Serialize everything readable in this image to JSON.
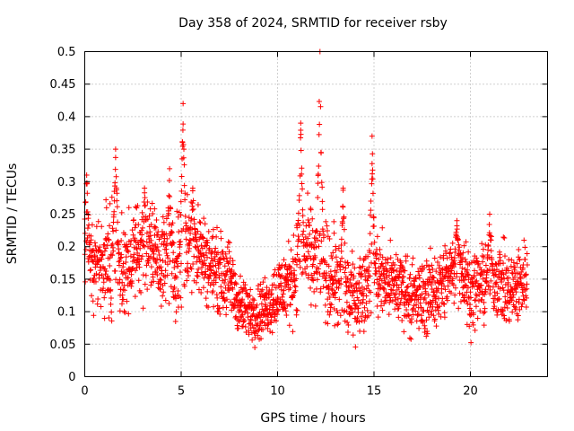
{
  "chart_data": {
    "type": "scatter",
    "title": "Day 358 of 2024, SRMTID for receiver rsby",
    "xlabel": "GPS time / hours",
    "ylabel": "SRMTID / TECUs",
    "xlim": [
      0,
      24
    ],
    "ylim": [
      0,
      0.5
    ],
    "x_ticks": [
      0,
      5,
      10,
      15,
      20
    ],
    "x_tick_labels": [
      "0",
      "5",
      "10",
      "15",
      "20"
    ],
    "y_ticks": [
      0,
      0.05,
      0.1,
      0.15,
      0.2,
      0.25,
      0.3,
      0.35,
      0.4,
      0.45,
      0.5
    ],
    "y_tick_labels": [
      "0",
      "0.05",
      "0.1",
      "0.15",
      "0.2",
      "0.25",
      "0.3",
      "0.35",
      "0.4",
      "0.45",
      "0.5"
    ],
    "grid": true,
    "marker": "+",
    "color": "#ff0000",
    "sample_interval_hours": 0.01,
    "series": [
      {
        "name": "SRMTID",
        "x_start": 0.0,
        "x_end": 22.95,
        "envelope_hours": [
          0,
          0.5,
          1,
          1.5,
          2,
          2.5,
          3,
          3.5,
          4,
          4.5,
          5,
          5.5,
          6,
          6.5,
          7,
          7.5,
          8,
          8.5,
          9,
          9.5,
          10,
          10.5,
          11,
          11.5,
          12,
          12.5,
          13,
          13.5,
          14,
          14.5,
          15,
          15.5,
          16,
          16.5,
          17,
          17.5,
          18,
          18.5,
          19,
          19.5,
          20,
          20.5,
          21,
          21.5,
          22,
          22.5,
          23
        ],
        "envelope_mean": [
          0.2,
          0.17,
          0.17,
          0.19,
          0.15,
          0.19,
          0.2,
          0.2,
          0.18,
          0.17,
          0.18,
          0.2,
          0.19,
          0.17,
          0.16,
          0.15,
          0.11,
          0.1,
          0.1,
          0.11,
          0.13,
          0.14,
          0.17,
          0.19,
          0.18,
          0.16,
          0.15,
          0.13,
          0.12,
          0.14,
          0.16,
          0.15,
          0.14,
          0.14,
          0.12,
          0.12,
          0.13,
          0.14,
          0.16,
          0.17,
          0.13,
          0.14,
          0.15,
          0.15,
          0.13,
          0.14,
          0.16
        ],
        "envelope_spread": [
          0.05,
          0.05,
          0.05,
          0.06,
          0.05,
          0.05,
          0.05,
          0.05,
          0.05,
          0.05,
          0.06,
          0.05,
          0.05,
          0.04,
          0.04,
          0.04,
          0.03,
          0.03,
          0.03,
          0.03,
          0.04,
          0.04,
          0.05,
          0.05,
          0.05,
          0.05,
          0.05,
          0.05,
          0.04,
          0.04,
          0.05,
          0.04,
          0.04,
          0.04,
          0.04,
          0.04,
          0.04,
          0.04,
          0.04,
          0.04,
          0.04,
          0.04,
          0.04,
          0.04,
          0.04,
          0.04,
          0.04
        ],
        "peaks": [
          {
            "x": 0.1,
            "y": 0.31
          },
          {
            "x": 1.6,
            "y": 0.35
          },
          {
            "x": 3.1,
            "y": 0.29
          },
          {
            "x": 4.4,
            "y": 0.32
          },
          {
            "x": 5.1,
            "y": 0.42
          },
          {
            "x": 5.6,
            "y": 0.29
          },
          {
            "x": 11.2,
            "y": 0.39
          },
          {
            "x": 12.2,
            "y": 0.5
          },
          {
            "x": 13.4,
            "y": 0.29
          },
          {
            "x": 14.9,
            "y": 0.37
          },
          {
            "x": 19.3,
            "y": 0.24
          },
          {
            "x": 21.0,
            "y": 0.25
          }
        ]
      }
    ]
  }
}
